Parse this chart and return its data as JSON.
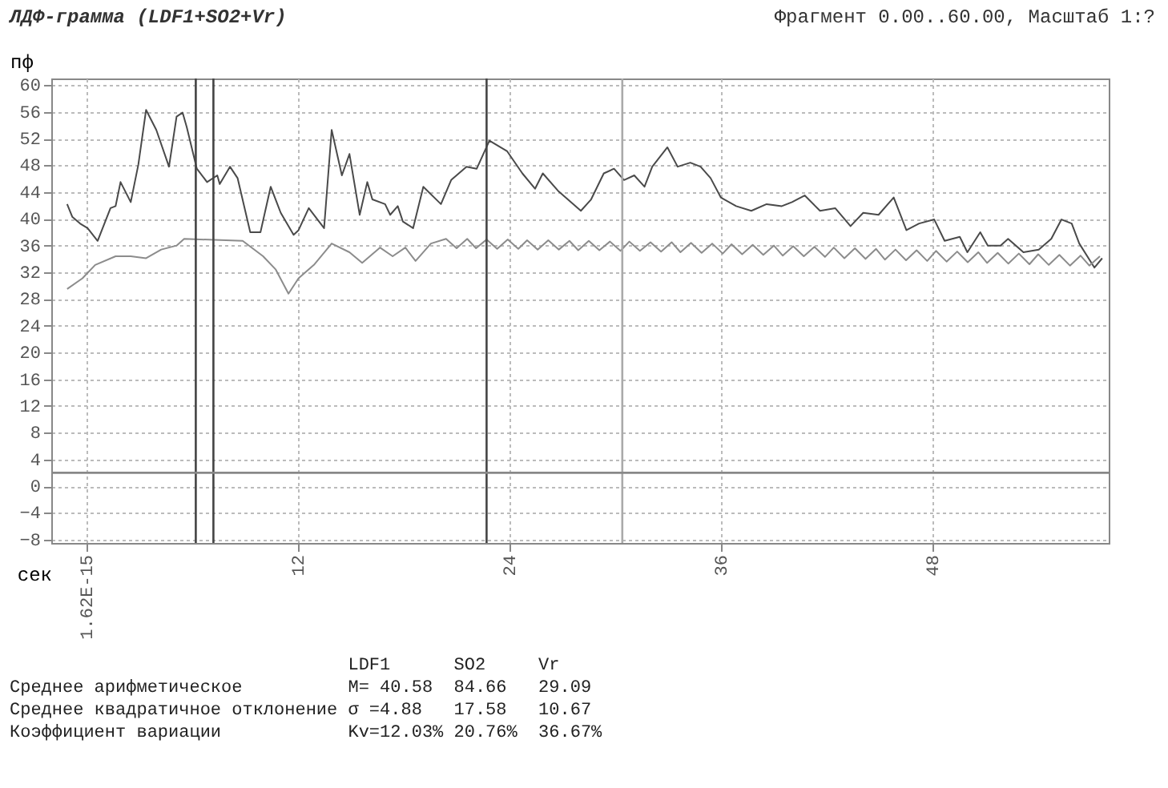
{
  "chart_data": {
    "type": "line",
    "title": "ЛДФ-грамма (LDF1+SO2+Vr)",
    "subtitle": "Фрагмент 0.00..60.00, Масштаб 1:?",
    "xlabel": "сек",
    "ylabel": "пф",
    "xlim": [
      -2,
      58
    ],
    "xticks": [
      {
        "value": 0,
        "label": "1.62E-15"
      },
      12,
      24,
      36,
      48
    ],
    "ylim": [
      -8.5,
      61
    ],
    "yticks": [
      -8,
      -4,
      0,
      4,
      8,
      12,
      16,
      20,
      24,
      28,
      32,
      36,
      40,
      44,
      48,
      52,
      56,
      60
    ],
    "grid": true,
    "series": [
      {
        "color": "#4a4a4a",
        "x": [
          -1.1,
          -0.81,
          -0.37,
          0.06,
          0.63,
          1.36,
          1.65,
          1.93,
          2.51,
          2.94,
          3.38,
          3.96,
          4.68,
          5.11,
          5.45,
          5.69,
          6.26,
          6.84,
          7.42,
          7.56,
          8.14,
          8.57,
          9.29,
          9.87,
          10.45,
          11.02,
          11.75,
          12.03,
          12.61,
          13.48,
          13.91,
          14.49,
          14.92,
          15.5,
          15.93,
          16.22,
          16.94,
          17.23,
          17.66,
          17.95,
          18.53,
          19.11,
          20.11,
          20.69,
          21.56,
          22.14,
          22.86,
          23.87,
          24.73,
          25.45,
          25.89,
          26.75,
          28.05,
          28.63,
          29.35,
          29.93,
          30.5,
          31.08,
          31.66,
          32.1,
          32.96,
          33.54,
          34.26,
          34.84,
          35.41,
          35.99,
          36.86,
          37.72,
          38.59,
          39.45,
          40.03,
          40.75,
          41.62,
          42.48,
          43.35,
          44.07,
          44.94,
          45.8,
          46.52,
          47.24,
          48.1,
          48.69,
          49.55,
          49.98,
          50.71,
          51.14,
          51.86,
          52.29,
          53.16,
          54.03,
          54.74,
          55.32,
          55.9,
          56.33,
          57.19,
          57.63
        ],
        "values": [
          42.2,
          40.3,
          39.3,
          38.6,
          36.7,
          41.6,
          41.9,
          45.5,
          42.5,
          48.1,
          56.3,
          53.3,
          47.8,
          55.3,
          55.9,
          53.7,
          47.5,
          45.5,
          46.5,
          45.2,
          47.8,
          46.1,
          38.0,
          38.0,
          44.8,
          40.9,
          37.6,
          38.3,
          41.6,
          38.6,
          53.3,
          46.5,
          49.7,
          40.6,
          45.5,
          42.9,
          42.2,
          40.6,
          41.9,
          39.6,
          38.6,
          44.8,
          42.2,
          45.8,
          47.8,
          47.5,
          51.7,
          50.1,
          46.8,
          44.5,
          46.8,
          44.2,
          41.2,
          42.9,
          46.8,
          47.5,
          45.8,
          46.5,
          44.8,
          47.8,
          50.7,
          47.8,
          48.4,
          47.8,
          46.1,
          43.2,
          41.9,
          41.2,
          42.2,
          41.9,
          42.5,
          43.5,
          41.2,
          41.6,
          38.9,
          40.9,
          40.6,
          43.2,
          38.3,
          39.3,
          39.9,
          36.7,
          37.3,
          35.0,
          38.0,
          36.0,
          36.0,
          37.0,
          35.0,
          35.4,
          37.0,
          39.9,
          39.3,
          36.3,
          32.7,
          34.1
        ]
      },
      {
        "color": "#8c8c8c",
        "x": [
          -1.1,
          -0.23,
          0.49,
          1.65,
          2.51,
          3.38,
          4.24,
          5.11,
          5.54,
          8.86,
          10.02,
          10.74,
          11.46,
          12.03,
          12.9,
          13.91,
          14.92,
          15.64,
          16.65,
          17.37,
          18.09,
          18.67,
          19.54,
          20.4,
          21.0,
          21.6,
          22.1,
          22.7,
          23.3,
          23.9,
          24.5,
          25.0,
          25.6,
          26.2,
          26.8,
          27.4,
          27.9,
          28.5,
          29.1,
          29.7,
          30.3,
          30.8,
          31.4,
          32.0,
          32.6,
          33.2,
          33.7,
          34.3,
          34.9,
          35.5,
          36.1,
          36.6,
          37.2,
          37.8,
          38.4,
          39.0,
          39.5,
          40.1,
          40.7,
          41.3,
          41.9,
          42.4,
          43.0,
          43.6,
          44.2,
          44.8,
          45.3,
          45.9,
          46.5,
          47.1,
          47.7,
          48.2,
          48.8,
          49.4,
          50.0,
          50.6,
          51.1,
          51.7,
          52.3,
          52.9,
          53.5,
          54.0,
          54.6,
          55.2,
          55.8,
          56.4,
          56.9,
          57.5
        ],
        "values": [
          29.5,
          31.1,
          33.1,
          34.4,
          34.4,
          34.1,
          35.4,
          36.0,
          37.0,
          36.7,
          34.4,
          32.4,
          28.8,
          31.1,
          33.1,
          36.3,
          35.0,
          33.4,
          35.7,
          34.4,
          35.7,
          33.7,
          36.3,
          37.0,
          35.6,
          37.0,
          35.6,
          36.9,
          35.5,
          36.9,
          35.5,
          36.8,
          35.4,
          36.8,
          35.4,
          36.7,
          35.3,
          36.7,
          35.3,
          36.6,
          35.2,
          36.6,
          35.2,
          36.5,
          35.1,
          36.5,
          35.0,
          36.4,
          34.9,
          36.3,
          34.8,
          36.2,
          34.7,
          36.1,
          34.6,
          36.0,
          34.5,
          35.9,
          34.4,
          35.8,
          34.3,
          35.7,
          34.1,
          35.6,
          34.0,
          35.5,
          33.9,
          35.4,
          33.8,
          35.3,
          33.7,
          35.2,
          33.6,
          35.1,
          33.5,
          35.0,
          33.4,
          34.9,
          33.3,
          34.8,
          33.2,
          34.7,
          33.1,
          34.6,
          33.0,
          34.5,
          33.0,
          34.4
        ]
      }
    ],
    "ref_lines": [
      {
        "axis": "x",
        "value": 6.2,
        "color": "#444444"
      },
      {
        "axis": "x",
        "value": 7.2,
        "color": "#444444"
      },
      {
        "axis": "x",
        "value": 22.7,
        "color": "#444444"
      },
      {
        "axis": "x",
        "value": 30.4,
        "color": "#aaaaaa"
      },
      {
        "axis": "y",
        "value": 2,
        "color": "#888888"
      }
    ],
    "annotations": [
      "                                LDF1      SO2     Vr",
      "Среднее арифметическое          M= 40.58  84.66   29.09",
      "Среднее квадратичное отклонение σ =4.88   17.58   10.67",
      "Коэффициент вариации            Kv=12.03% 20.76%  36.67%"
    ]
  }
}
